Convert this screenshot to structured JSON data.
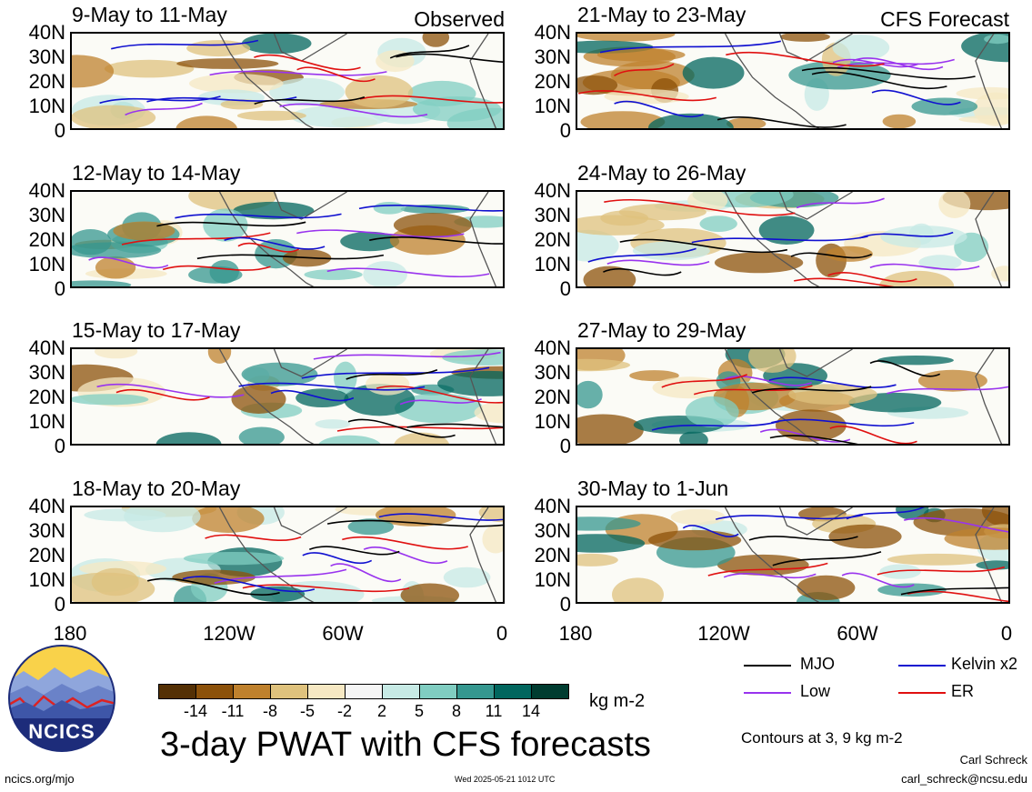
{
  "labels": {
    "observed": "Observed",
    "forecast": "CFS Forecast"
  },
  "lat_ticks": [
    "40N",
    "30N",
    "20N",
    "10N",
    "0"
  ],
  "lon_ticks": [
    "180",
    "120W",
    "60W",
    "0"
  ],
  "panels": [
    {
      "title": "9-May to 11-May",
      "side": "left",
      "row": 0
    },
    {
      "title": "12-May to 14-May",
      "side": "left",
      "row": 1
    },
    {
      "title": "15-May to 17-May",
      "side": "left",
      "row": 2
    },
    {
      "title": "18-May to 20-May",
      "side": "left",
      "row": 3
    },
    {
      "title": "21-May to 23-May",
      "side": "right",
      "row": 0
    },
    {
      "title": "24-May to 26-May",
      "side": "right",
      "row": 1
    },
    {
      "title": "27-May to 29-May",
      "side": "right",
      "row": 2
    },
    {
      "title": "30-May to 1-Jun",
      "side": "right",
      "row": 3
    }
  ],
  "colorbar": {
    "colors": [
      "#543005",
      "#8c510a",
      "#bf812d",
      "#dfc27d",
      "#f6e8c3",
      "#f5f5f5",
      "#c7eae5",
      "#80cdc1",
      "#35978f",
      "#01665e",
      "#003c30"
    ],
    "labels": [
      "-14",
      "-11",
      "-8",
      "-5",
      "-2",
      "2",
      "5",
      "8",
      "11",
      "14"
    ],
    "units": "kg m-2"
  },
  "legend": {
    "mjo": {
      "label": "MJO",
      "color": "#000000"
    },
    "kelvin": {
      "label": "Kelvin x2",
      "color": "#1010d0"
    },
    "low": {
      "label": "Low",
      "color": "#9933ee"
    },
    "er": {
      "label": "ER",
      "color": "#e01010"
    }
  },
  "contours_note": "Contours at 3, 9 kg m-2",
  "main_title": "3-day PWAT with CFS forecasts",
  "logo_text": "NCICS",
  "footer": {
    "url": "ncics.org/mjo",
    "timestamp": "Wed 2025-05-21 1012 UTC",
    "author": "Carl Schreck",
    "email": "carl_schreck@ncsu.edu"
  }
}
